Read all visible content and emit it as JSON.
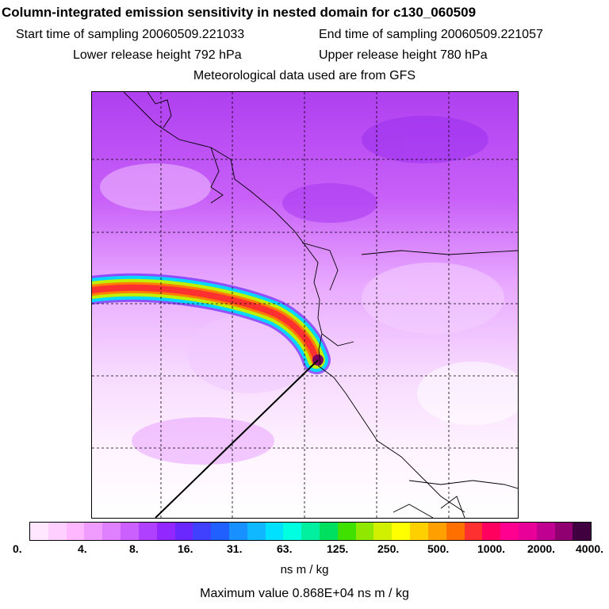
{
  "header": {
    "title": "Column-integrated emission sensitivity in nested domain for c130_060509",
    "start_label": "Start time of sampling 20060509.221033",
    "end_label": "End time of sampling 20060509.221057",
    "lower_label": "Lower release height  792 hPa",
    "upper_label": "Upper release height  780 hPa",
    "met_label": "Meteorological data used are from GFS"
  },
  "colorbar": {
    "colors": [
      "#ffe8ff",
      "#ffd0ff",
      "#ffb8ff",
      "#f09cff",
      "#de80ff",
      "#cc60ff",
      "#b040ff",
      "#9228ff",
      "#6a28ff",
      "#4040ff",
      "#2060ff",
      "#1890ff",
      "#10b8ff",
      "#00e0ff",
      "#00ffe0",
      "#00f0a0",
      "#00e060",
      "#40e000",
      "#90e800",
      "#d0f000",
      "#ffff00",
      "#ffd000",
      "#ffa000",
      "#ff7000",
      "#ff3030",
      "#ff0060",
      "#ff0090",
      "#e80098",
      "#c00090",
      "#900070",
      "#400040"
    ],
    "tick_labels": [
      "0.",
      "4.",
      "8.",
      "16.",
      "31.",
      "63.",
      "125.",
      "250.",
      "500.",
      "1000.",
      "2000.",
      "4000."
    ],
    "unit": "ns m / kg"
  },
  "footer": {
    "max_value": "Maximum value  0.868E+04 ns m / kg"
  }
}
